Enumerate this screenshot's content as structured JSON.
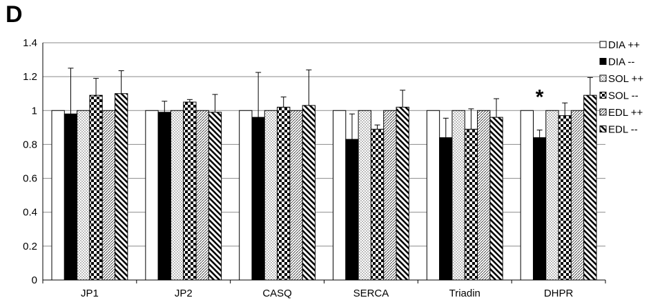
{
  "panel_label": "D",
  "chart_data": {
    "type": "bar",
    "categories": [
      "JP1",
      "JP2",
      "CASQ",
      "SERCA",
      "Triadin",
      "DHPR"
    ],
    "series": [
      {
        "name": "DIA ++",
        "pattern": "white",
        "values": [
          1,
          1,
          1,
          1,
          1,
          1
        ],
        "errors": [
          0,
          0,
          0,
          0,
          0,
          0
        ]
      },
      {
        "name": "DIA --",
        "pattern": "black",
        "values": [
          0.98,
          0.99,
          0.96,
          0.83,
          0.84,
          0.84
        ],
        "errors": [
          0.27,
          0.065,
          0.265,
          0.15,
          0.115,
          0.045
        ]
      },
      {
        "name": "SOL ++",
        "pattern": "dots",
        "values": [
          1,
          1,
          1,
          1,
          1,
          1
        ],
        "errors": [
          0,
          0,
          0,
          0,
          0,
          0
        ]
      },
      {
        "name": "SOL --",
        "pattern": "checker",
        "values": [
          1.09,
          1.05,
          1.02,
          0.89,
          0.89,
          0.97
        ],
        "errors": [
          0.1,
          0.015,
          0.06,
          0.025,
          0.12,
          0.075
        ]
      },
      {
        "name": "EDL ++",
        "pattern": "diag-right",
        "values": [
          1,
          1,
          1,
          1,
          1,
          1
        ],
        "errors": [
          0,
          0,
          0,
          0,
          0,
          0
        ]
      },
      {
        "name": "EDL --",
        "pattern": "diag-left",
        "values": [
          1.1,
          0.99,
          1.03,
          1.02,
          0.96,
          1.09
        ],
        "errors": [
          0.135,
          0.105,
          0.21,
          0.1,
          0.11,
          0.105
        ]
      }
    ],
    "yticks": [
      "0",
      "0.2",
      "0.4",
      "0.6",
      "0.8",
      "1",
      "1.2",
      "1.4"
    ],
    "ylim": [
      0,
      1.4
    ],
    "grid": true,
    "legend_position": "right",
    "annotations": [
      {
        "text": "*",
        "category": "DHPR",
        "series": "DIA --"
      }
    ]
  }
}
